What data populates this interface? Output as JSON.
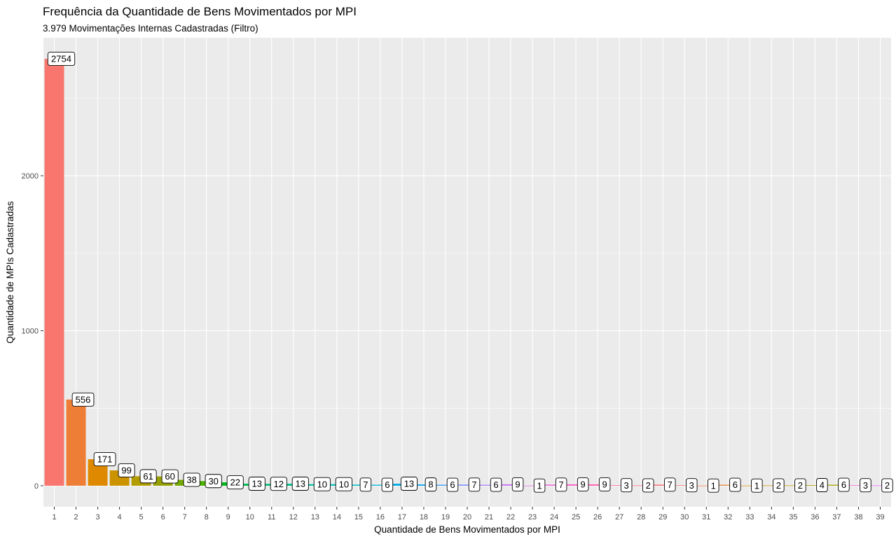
{
  "chart_data": {
    "type": "bar",
    "title": "Frequência da Quantidade de Bens Movimentados por MPI",
    "subtitle": "3.979  Movimentações Internas Cadastradas (Filtro)",
    "xlabel": "Quantidade de Bens Movimentados por MPI",
    "ylabel": "Quantidade de MPIs Cadastradas",
    "categories": [
      "1",
      "2",
      "3",
      "4",
      "5",
      "6",
      "7",
      "8",
      "9",
      "10",
      "11",
      "12",
      "13",
      "14",
      "15",
      "16",
      "17",
      "18",
      "19",
      "20",
      "21",
      "22",
      "23",
      "24",
      "25",
      "26",
      "27",
      "28",
      "29",
      "30",
      "31",
      "32",
      "33",
      "34",
      "35",
      "36",
      "37",
      "38",
      "39"
    ],
    "values": [
      2754,
      556,
      171,
      99,
      61,
      60,
      38,
      30,
      22,
      13,
      12,
      13,
      10,
      10,
      7,
      6,
      13,
      8,
      6,
      7,
      6,
      9,
      1,
      7,
      9,
      9,
      3,
      2,
      7,
      3,
      1,
      6,
      1,
      2,
      2,
      4,
      6,
      3,
      2
    ],
    "ylim": [
      -136,
      2890
    ],
    "yticks": [
      0,
      1000,
      2000
    ],
    "ytick_labels": [
      "0",
      "1000",
      "2000"
    ],
    "grid": true,
    "legend": "none",
    "colors": [
      "#F8766D",
      "#EE7E36",
      "#DF8900",
      "#CB9300",
      "#B39C00",
      "#959F00",
      "#73A900",
      "#4CB300",
      "#00B61C",
      "#00BA53",
      "#00BE74",
      "#00C08C",
      "#00C0A1",
      "#00BFB5",
      "#00BBC7",
      "#00B5D8",
      "#00AEE5",
      "#00A4EE",
      "#3399F4",
      "#7B8CF8",
      "#A77FF8",
      "#C776F2",
      "#E06DE8",
      "#F066DA",
      "#FA62C8",
      "#FF61B2",
      "#FF66A0",
      "#FE6C8C",
      "#F9737A",
      "#F4787A",
      "#ED7F50",
      "#E58738",
      "#DC8E20",
      "#D19410",
      "#C39A00",
      "#B4A000",
      "#A4A500",
      "#F264D4",
      "#E76BF3"
    ],
    "bar_colors_note": ""
  }
}
